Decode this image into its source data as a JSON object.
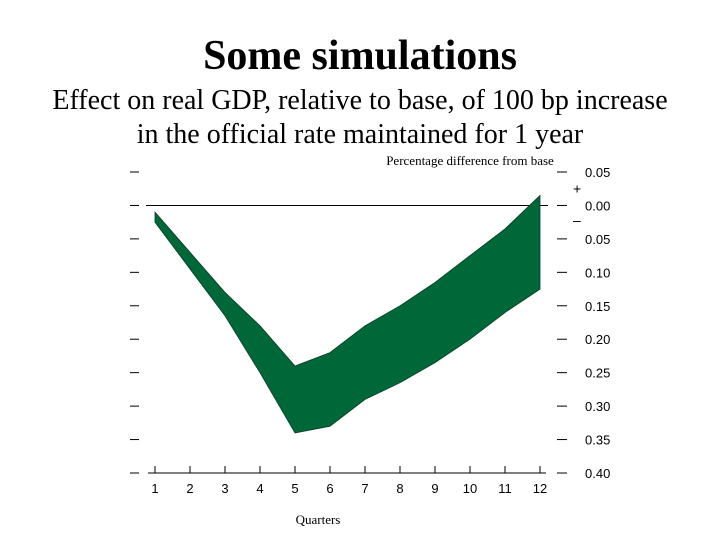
{
  "slide": {
    "title": "Some simulations",
    "subtitle_line1": "Effect on real GDP, relative to base, of 100 bp increase",
    "subtitle_line2": "in the official rate maintained for 1 year"
  },
  "chart_data": {
    "type": "area",
    "ylabel": "Percentage difference from base",
    "xlabel": "Quarters",
    "x": [
      1,
      2,
      3,
      4,
      5,
      6,
      7,
      8,
      9,
      10,
      11,
      12
    ],
    "series": [
      {
        "values_upper": [
          -0.01,
          -0.07,
          -0.13,
          -0.18,
          -0.24,
          -0.22,
          -0.18,
          -0.15,
          -0.115,
          -0.075,
          -0.035,
          0.015
        ]
      },
      {
        "values_lower": [
          -0.025,
          -0.095,
          -0.165,
          -0.25,
          -0.34,
          -0.33,
          -0.29,
          -0.265,
          -0.235,
          -0.2,
          -0.16,
          -0.125
        ]
      }
    ],
    "ylim": [
      -0.4,
      0.05
    ],
    "xlim": [
      1,
      12
    ],
    "y_ticks": [
      {
        "value": 0.05,
        "label": "0.05"
      },
      {
        "value": 0.0,
        "label": "0.00"
      },
      {
        "value": -0.05,
        "label": "0.05"
      },
      {
        "value": -0.1,
        "label": "0.10"
      },
      {
        "value": -0.15,
        "label": "0.15"
      },
      {
        "value": -0.2,
        "label": "0.20"
      },
      {
        "value": -0.25,
        "label": "0.25"
      },
      {
        "value": -0.3,
        "label": "0.30"
      },
      {
        "value": -0.35,
        "label": "0.35"
      },
      {
        "value": -0.4,
        "label": "0.40"
      }
    ],
    "plus_sign": "+",
    "minus_sign": "–",
    "fill_color": "#006838",
    "grid": false,
    "zero_line": true
  }
}
